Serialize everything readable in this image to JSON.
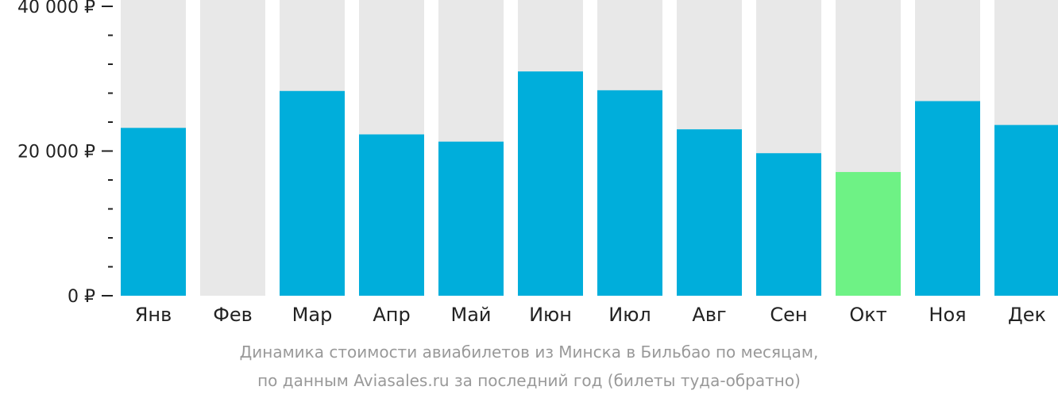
{
  "chart_data": {
    "type": "bar",
    "categories": [
      "Янв",
      "Фев",
      "Мар",
      "Апр",
      "Май",
      "Июн",
      "Июл",
      "Авг",
      "Сен",
      "Окт",
      "Ноя",
      "Дек"
    ],
    "values": [
      23200,
      null,
      28300,
      22300,
      21300,
      31000,
      28400,
      23000,
      19700,
      17100,
      26900,
      23600
    ],
    "ylim": [
      0,
      40000
    ],
    "yticks": [
      {
        "value": 0,
        "label": "0 ₽"
      },
      {
        "value": 20000,
        "label": "20 000 ₽"
      },
      {
        "value": 40000,
        "label": "40 000 ₽"
      }
    ],
    "highlight_index": 9,
    "colors": {
      "bar": "#00AEDB",
      "highlight": "#6EF285",
      "background_bar": "#E8E8E8",
      "axis": "#222222"
    },
    "grid": false,
    "legend": "none"
  },
  "caption": {
    "line1": "Динамика стоимости авиабилетов из Минска в Бильбао по месяцам,",
    "line2": "по данным Aviasales.ru за последний год (билеты туда-обратно)"
  }
}
